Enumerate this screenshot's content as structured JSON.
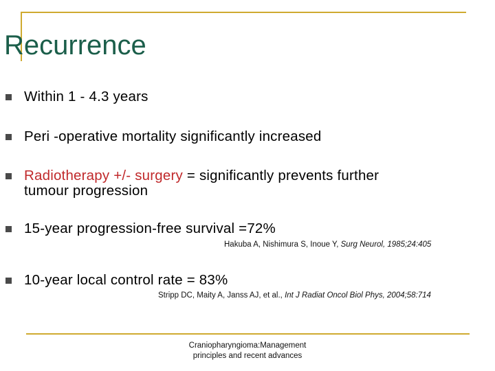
{
  "slide": {
    "title": "Recurrence",
    "bullets": [
      {
        "text": "Within 1 - 4.3 years"
      },
      {
        "text": "Peri -operative mortality significantly increased"
      },
      {
        "highlight": "Radiotherapy +/- surgery",
        "rest_line1": " = significantly prevents further",
        "line2": "tumour progression"
      },
      {
        "text": "15-year progression-free survival =72%"
      },
      {
        "text": "10-year local control rate = 83%"
      }
    ],
    "refs": [
      {
        "authors": "Hakuba A, Nishimura S, Inoue Y, ",
        "journal": "Surg Neurol, 1985;24:405"
      },
      {
        "authors": "Stripp DC, Maity A, Janss AJ, et al., ",
        "journal": "Int J Radiat Oncol Biol Phys, 2004;58:714"
      }
    ],
    "footer": {
      "line1": "Craniopharyngioma:Management",
      "line2": "principles and recent advances"
    }
  },
  "colors": {
    "accent_gold": "#cfaa2f",
    "title_green": "#1b5e4a",
    "highlight_red": "#c0292b",
    "bullet_gray": "#4a4a4a"
  }
}
